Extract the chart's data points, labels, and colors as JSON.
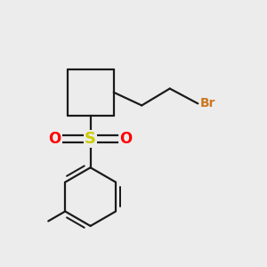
{
  "background_color": "#ececec",
  "bond_color": "#1a1a1a",
  "S_color": "#cccc00",
  "O_color": "#ff0000",
  "Br_color": "#cc7722",
  "bond_width": 1.6,
  "figsize": [
    3.0,
    3.0
  ],
  "dpi": 100,
  "xlim": [
    1.5,
    8.0
  ],
  "ylim": [
    1.2,
    8.2
  ]
}
